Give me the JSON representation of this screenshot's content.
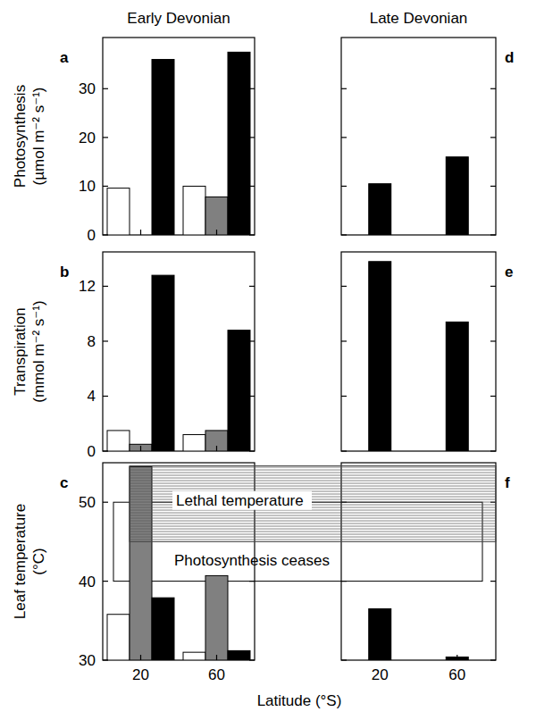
{
  "chart_data": [
    {
      "type": "bar",
      "title": "Early Devonian",
      "panel": "a",
      "y_label": "Photosynthesis (µmol m⁻² s⁻¹)",
      "categories": [
        "20",
        "60"
      ],
      "series": [
        {
          "color": "#ffffff",
          "values": [
            9.6,
            10
          ]
        },
        {
          "color": "#808080",
          "values": [
            null,
            7.8
          ]
        },
        {
          "color": "#000000",
          "values": [
            36,
            37.5
          ]
        }
      ],
      "ylim": [
        0,
        40.5
      ],
      "yticks": [
        0,
        10,
        20,
        30
      ],
      "tick_labels": "y"
    },
    {
      "type": "bar",
      "panel": "b",
      "y_label": "Transpiration (mmol m⁻² s⁻¹)",
      "categories": [
        "20",
        "60"
      ],
      "series": [
        {
          "color": "#ffffff",
          "values": [
            1.5,
            1.2
          ]
        },
        {
          "color": "#808080",
          "values": [
            0.5,
            1.5
          ]
        },
        {
          "color": "#000000",
          "values": [
            12.8,
            8.8
          ]
        }
      ],
      "ylim": [
        0,
        14.5
      ],
      "yticks": [
        0,
        4,
        8,
        12
      ],
      "tick_labels": "y"
    },
    {
      "type": "bar",
      "panel": "c",
      "y_label": "Leaf temperature (°C)",
      "x_label": "Latitude (°S)",
      "categories": [
        "20",
        "60"
      ],
      "series": [
        {
          "color": "#ffffff",
          "values": [
            35.8,
            31.0
          ]
        },
        {
          "color": "#808080",
          "values": [
            54.5,
            40.7
          ]
        },
        {
          "color": "#000000",
          "values": [
            37.9,
            31.2
          ]
        }
      ],
      "ylim": [
        30,
        55
      ],
      "yticks": [
        30,
        40,
        50
      ],
      "bands": [
        {
          "label": "Lethal temperature",
          "range": [
            45,
            54.6
          ]
        },
        {
          "label": "Photosynthesis ceases",
          "range": [
            40,
            50
          ]
        }
      ]
    },
    {
      "type": "bar",
      "title": "Late Devonian",
      "panel": "d",
      "categories": [
        "20",
        "60"
      ],
      "series": [
        {
          "color": "#000000",
          "values": [
            10.5,
            16
          ]
        }
      ],
      "ylim": [
        0,
        40.5
      ],
      "yticks": [
        0,
        10,
        20,
        30
      ],
      "tick_labels": false
    },
    {
      "type": "bar",
      "panel": "e",
      "categories": [
        "20",
        "60"
      ],
      "series": [
        {
          "color": "#000000",
          "values": [
            13.8,
            9.4
          ]
        }
      ],
      "ylim": [
        0,
        14.5
      ],
      "yticks": [
        0,
        4,
        8,
        12
      ],
      "tick_labels": false
    },
    {
      "type": "bar",
      "panel": "f",
      "categories": [
        "20",
        "60"
      ],
      "series": [
        {
          "color": "#000000",
          "values": [
            36.5,
            30.4
          ]
        }
      ],
      "ylim": [
        30,
        55
      ],
      "yticks": [
        30,
        40,
        50
      ],
      "tick_labels": "x"
    }
  ]
}
